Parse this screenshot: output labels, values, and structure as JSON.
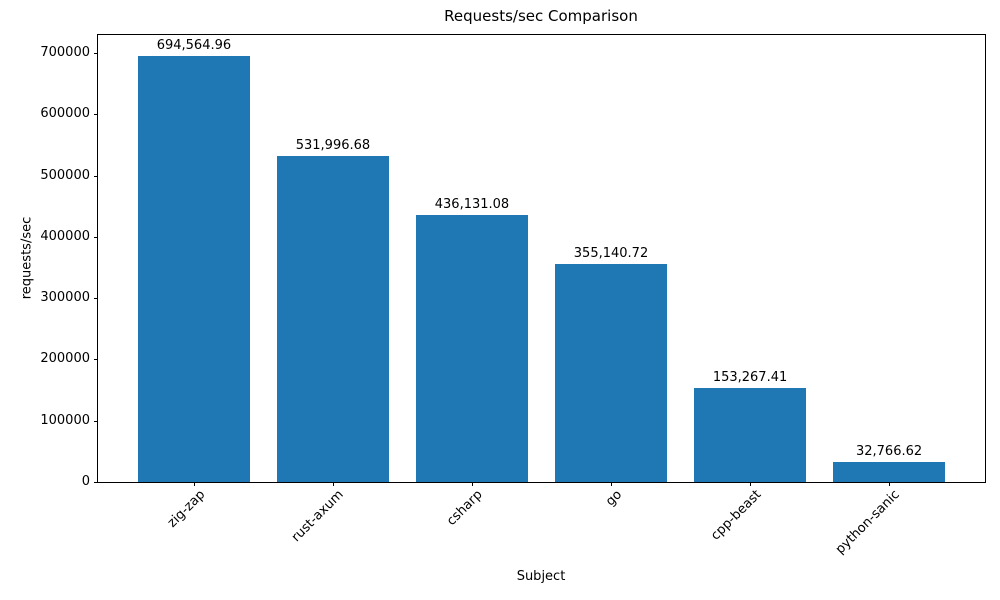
{
  "chart_data": {
    "type": "bar",
    "title": "Requests/sec Comparison",
    "xlabel": "Subject",
    "ylabel": "requests/sec",
    "categories": [
      "zig-zap",
      "rust-axum",
      "csharp",
      "go",
      "cpp-beast",
      "python-sanic"
    ],
    "values": [
      694564.96,
      531996.68,
      436131.08,
      355140.72,
      153267.41,
      32766.62
    ],
    "value_labels": [
      "694,564.96",
      "531,996.68",
      "436,131.08",
      "355,140.72",
      "153,267.41",
      "32,766.62"
    ],
    "ytick_labels": [
      "0",
      "100000",
      "200000",
      "300000",
      "400000",
      "500000",
      "600000",
      "700000"
    ],
    "yticks": [
      0,
      100000,
      200000,
      300000,
      400000,
      500000,
      600000,
      700000
    ],
    "ylim": [
      0,
      729293
    ],
    "bar_color": "#1f77b4",
    "axis_color": "#000000",
    "text_color": "#000000",
    "grid": false,
    "legend": "none"
  }
}
